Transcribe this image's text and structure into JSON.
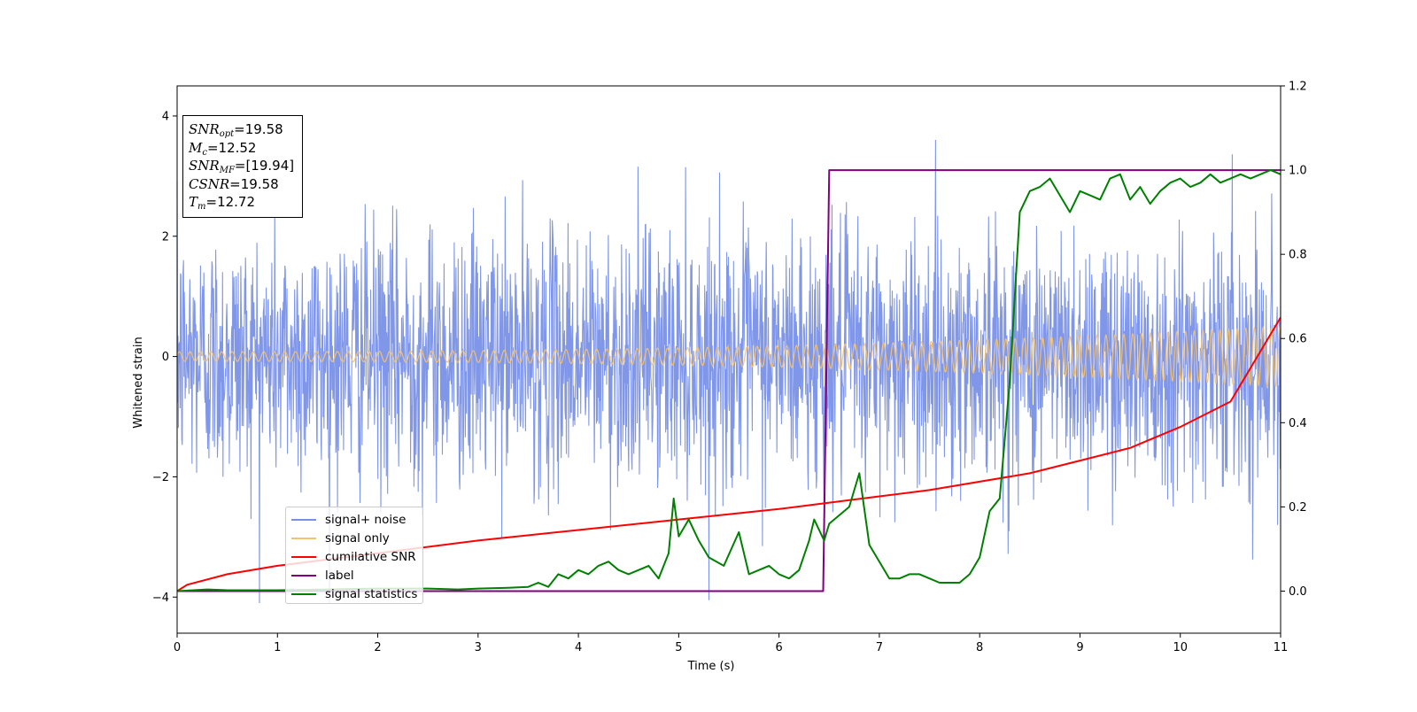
{
  "chart_data": {
    "type": "line",
    "xlabel": "Time (s)",
    "ylabel": "Whitened strain",
    "xlim": [
      0,
      11
    ],
    "ylim": [
      -4.6,
      4.5
    ],
    "y2lim": [
      -0.1,
      1.2
    ],
    "x_ticks": [
      0,
      1,
      2,
      3,
      4,
      5,
      6,
      7,
      8,
      9,
      10,
      11
    ],
    "y_ticks": [
      -4,
      -2,
      0,
      2,
      4
    ],
    "y_tick_labels": [
      "−4",
      "−2",
      "0",
      "2",
      "4"
    ],
    "y2_ticks": [
      0.0,
      0.2,
      0.4,
      0.6,
      0.8,
      1.0,
      1.2
    ],
    "y2_tick_labels": [
      "0.0",
      "0.2",
      "0.4",
      "0.6",
      "0.8",
      "1.0",
      "1.2"
    ],
    "legend_position": "lower-left",
    "colors": {
      "noise": "#7890e8",
      "signal": "#f5c16e",
      "cumulative_snr": "#ff0000",
      "label": "#800080",
      "statistics": "#008000"
    },
    "series": [
      {
        "name": "signal+ noise",
        "axis": "left",
        "kind": "noise",
        "description_values": {
          "std": 1.0,
          "range": [
            -4.1,
            3.9
          ]
        }
      },
      {
        "name": "signal only",
        "axis": "left",
        "kind": "chirp",
        "amplitude": [
          0.08,
          0.5
        ]
      },
      {
        "name": "cumilative SNR",
        "axis": "right",
        "x": [
          0,
          0.1,
          0.5,
          1,
          2,
          3,
          4,
          5,
          6,
          6.5,
          7,
          7.5,
          8,
          8.5,
          9,
          9.5,
          10,
          10.5,
          11
        ],
        "y": [
          0.0,
          0.015,
          0.04,
          0.06,
          0.09,
          0.12,
          0.145,
          0.17,
          0.195,
          0.21,
          0.225,
          0.24,
          0.26,
          0.28,
          0.31,
          0.34,
          0.39,
          0.45,
          0.65
        ]
      },
      {
        "name": "label",
        "axis": "right",
        "x": [
          0,
          6.44,
          6.5,
          11
        ],
        "y": [
          0,
          0,
          1,
          1
        ]
      },
      {
        "name": "signal statistics",
        "axis": "right",
        "x": [
          0,
          0.3,
          0.5,
          1,
          1.5,
          2,
          2.5,
          2.8,
          3,
          3.3,
          3.5,
          3.6,
          3.7,
          3.8,
          3.9,
          4.0,
          4.1,
          4.2,
          4.3,
          4.4,
          4.5,
          4.6,
          4.7,
          4.8,
          4.9,
          4.95,
          5.0,
          5.1,
          5.2,
          5.3,
          5.45,
          5.6,
          5.7,
          5.8,
          5.9,
          6.0,
          6.1,
          6.2,
          6.3,
          6.35,
          6.45,
          6.5,
          6.6,
          6.7,
          6.8,
          6.9,
          7.0,
          7.1,
          7.2,
          7.3,
          7.4,
          7.5,
          7.6,
          7.7,
          7.8,
          7.9,
          8.0,
          8.1,
          8.2,
          8.3,
          8.4,
          8.5,
          8.6,
          8.7,
          8.8,
          8.9,
          9.0,
          9.1,
          9.2,
          9.3,
          9.4,
          9.5,
          9.6,
          9.7,
          9.8,
          9.9,
          10.0,
          10.1,
          10.2,
          10.3,
          10.4,
          10.5,
          10.6,
          10.7,
          10.8,
          10.9,
          11.0
        ],
        "y": [
          0.0,
          0.004,
          0.002,
          0.002,
          0.004,
          0.006,
          0.006,
          0.004,
          0.006,
          0.008,
          0.01,
          0.02,
          0.01,
          0.04,
          0.03,
          0.05,
          0.04,
          0.06,
          0.07,
          0.05,
          0.04,
          0.05,
          0.06,
          0.03,
          0.09,
          0.22,
          0.13,
          0.17,
          0.12,
          0.08,
          0.06,
          0.14,
          0.04,
          0.05,
          0.06,
          0.04,
          0.03,
          0.05,
          0.12,
          0.17,
          0.12,
          0.16,
          0.18,
          0.2,
          0.28,
          0.11,
          0.07,
          0.03,
          0.03,
          0.04,
          0.04,
          0.03,
          0.02,
          0.02,
          0.02,
          0.04,
          0.08,
          0.19,
          0.22,
          0.5,
          0.9,
          0.95,
          0.96,
          0.98,
          0.94,
          0.9,
          0.95,
          0.94,
          0.93,
          0.98,
          0.99,
          0.93,
          0.96,
          0.92,
          0.95,
          0.97,
          0.98,
          0.96,
          0.97,
          0.99,
          0.97,
          0.98,
          0.99,
          0.98,
          0.99,
          1.0,
          0.99
        ]
      }
    ],
    "info_box": {
      "snr_opt": "=19.58",
      "mc": "=12.52",
      "snr_mf": "=[19.94]",
      "csnr": "=19.58",
      "tm": "=12.72"
    }
  }
}
